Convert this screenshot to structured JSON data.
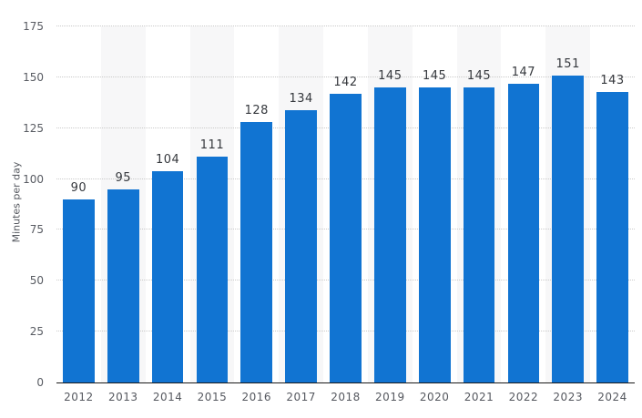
{
  "chart_data": {
    "type": "bar",
    "categories": [
      "2012",
      "2013",
      "2014",
      "2015",
      "2016",
      "2017",
      "2018",
      "2019",
      "2020",
      "2021",
      "2022",
      "2023",
      "2024"
    ],
    "values": [
      90,
      95,
      104,
      111,
      128,
      134,
      142,
      145,
      145,
      145,
      147,
      151,
      143
    ],
    "title": "",
    "xlabel": "",
    "ylabel": "Minutes per day",
    "ylim": [
      0,
      175
    ],
    "yticks": [
      0,
      25,
      50,
      75,
      100,
      125,
      150,
      175
    ],
    "value_labels_shown": true,
    "legend": "none",
    "grid": "horizontal-dotted",
    "colors": {
      "bar": "#1174d2",
      "alt_column_band": "#f7f7f8",
      "gridline": "#c9c9c9",
      "axis_line": "#1a1a1a",
      "value_label": "#35383d",
      "tick_label": "#55585f",
      "axis_title": "#54575e",
      "background": "#ffffff"
    }
  }
}
